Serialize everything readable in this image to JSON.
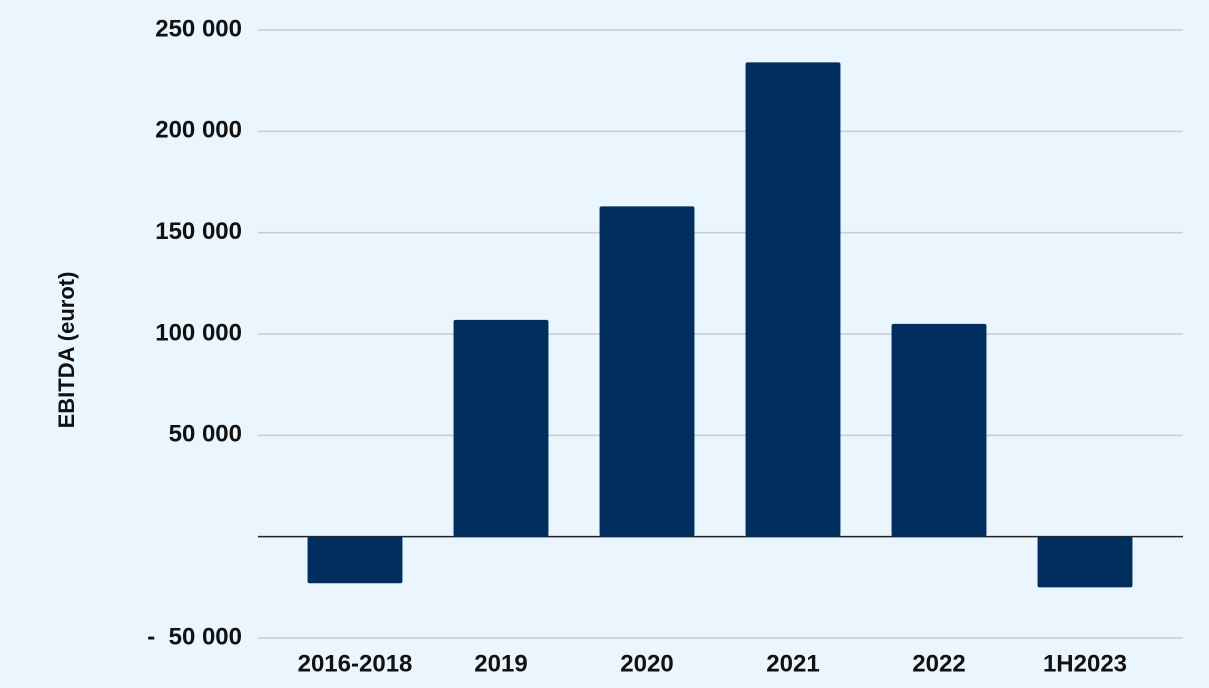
{
  "chart_data": {
    "type": "bar",
    "y_label": "EBITDA (eurot)",
    "categories": [
      "2016-2018",
      "2019",
      "2020",
      "2021",
      "2022",
      "1H2023"
    ],
    "values": [
      -23000,
      107000,
      163000,
      234000,
      105000,
      -25000
    ],
    "color": "#002f5f",
    "ylim": [
      -50000,
      250000
    ],
    "yticks": [
      {
        "value": -50000,
        "label": "-  50 000"
      },
      {
        "value": 50000,
        "label": "50 000"
      },
      {
        "value": 100000,
        "label": "100 000"
      },
      {
        "value": 150000,
        "label": "150 000"
      },
      {
        "value": 200000,
        "label": "200 000"
      },
      {
        "value": 250000,
        "label": "250 000"
      }
    ],
    "grid": true
  }
}
